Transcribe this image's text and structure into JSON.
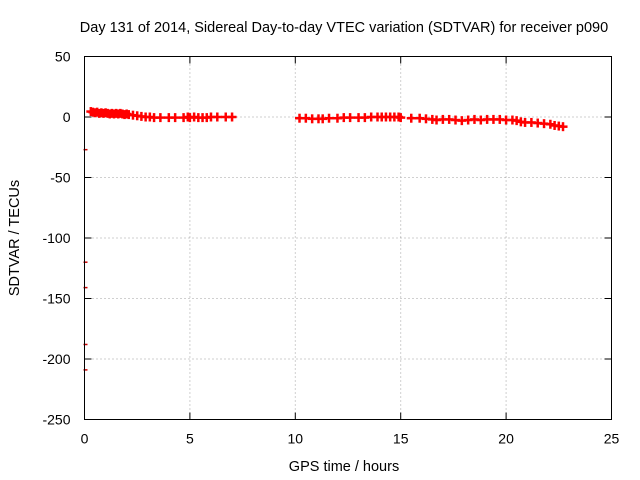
{
  "chart_data": {
    "type": "scatter",
    "title": "Day 131 of 2014, Sidereal Day-to-day VTEC variation (SDTVAR) for receiver p090",
    "xlabel": "GPS time / hours",
    "ylabel": "SDTVAR / TECUs",
    "xlim": [
      0,
      25
    ],
    "ylim": [
      -250,
      50
    ],
    "xticks": [
      0,
      5,
      10,
      15,
      20,
      25
    ],
    "yticks": [
      -250,
      -200,
      -150,
      -100,
      -50,
      0,
      50
    ],
    "grid": true,
    "legend": "none",
    "series": [
      {
        "name": "SDTVAR",
        "color": "#ff0000",
        "marker": "plus",
        "points": [
          [
            0.3,
            4.5
          ],
          [
            0.4,
            4
          ],
          [
            0.5,
            3.5
          ],
          [
            0.6,
            4
          ],
          [
            0.7,
            3
          ],
          [
            0.8,
            3.5
          ],
          [
            0.9,
            3
          ],
          [
            1.0,
            3.5
          ],
          [
            1.1,
            3
          ],
          [
            1.2,
            2.5
          ],
          [
            1.3,
            3
          ],
          [
            1.4,
            2.5
          ],
          [
            1.5,
            3
          ],
          [
            1.6,
            2.5
          ],
          [
            1.7,
            3
          ],
          [
            1.8,
            2.5
          ],
          [
            1.9,
            2
          ],
          [
            2.0,
            2.5
          ],
          [
            2.1,
            2
          ],
          [
            2.3,
            1.5
          ],
          [
            2.5,
            1
          ],
          [
            2.7,
            0.5
          ],
          [
            2.9,
            0
          ],
          [
            3.1,
            0
          ],
          [
            3.3,
            -0.5
          ],
          [
            3.6,
            -0.5
          ],
          [
            4.0,
            -0.5
          ],
          [
            4.3,
            -0.5
          ],
          [
            4.7,
            -0.5
          ],
          [
            4.9,
            0
          ],
          [
            5.0,
            -0.5
          ],
          [
            5.2,
            0
          ],
          [
            5.4,
            -0.5
          ],
          [
            5.6,
            -0.5
          ],
          [
            5.8,
            -0.5
          ],
          [
            6.0,
            0
          ],
          [
            6.3,
            0
          ],
          [
            6.7,
            0
          ],
          [
            7.0,
            0
          ],
          [
            10.2,
            -1
          ],
          [
            10.5,
            -1
          ],
          [
            10.8,
            -1.5
          ],
          [
            11.1,
            -1.5
          ],
          [
            11.3,
            -1.5
          ],
          [
            11.6,
            -1
          ],
          [
            12.0,
            -1
          ],
          [
            12.3,
            -0.5
          ],
          [
            12.6,
            -0.5
          ],
          [
            13.0,
            -0.5
          ],
          [
            13.3,
            -0.5
          ],
          [
            13.6,
            0
          ],
          [
            13.9,
            0
          ],
          [
            14.1,
            0
          ],
          [
            14.3,
            0
          ],
          [
            14.5,
            0
          ],
          [
            14.7,
            0
          ],
          [
            14.9,
            0
          ],
          [
            15.0,
            -0.5
          ],
          [
            15.5,
            -1
          ],
          [
            15.9,
            -1
          ],
          [
            16.2,
            -1.5
          ],
          [
            16.5,
            -2
          ],
          [
            16.7,
            -2.5
          ],
          [
            17.0,
            -2
          ],
          [
            17.3,
            -2
          ],
          [
            17.6,
            -2.5
          ],
          [
            17.9,
            -3
          ],
          [
            18.2,
            -2.5
          ],
          [
            18.5,
            -2
          ],
          [
            18.8,
            -2.5
          ],
          [
            19.1,
            -2
          ],
          [
            19.4,
            -2
          ],
          [
            19.7,
            -2
          ],
          [
            20.0,
            -2.5
          ],
          [
            20.3,
            -2.5
          ],
          [
            20.5,
            -3
          ],
          [
            20.7,
            -4
          ],
          [
            20.9,
            -4.5
          ],
          [
            21.2,
            -4.5
          ],
          [
            21.5,
            -5
          ],
          [
            21.8,
            -5.5
          ],
          [
            22.1,
            -6
          ],
          [
            22.3,
            -7
          ],
          [
            22.5,
            -7.5
          ],
          [
            22.7,
            -8
          ]
        ]
      }
    ],
    "left_edge_markers": [
      -27,
      -120,
      -141,
      -188,
      -209
    ]
  }
}
